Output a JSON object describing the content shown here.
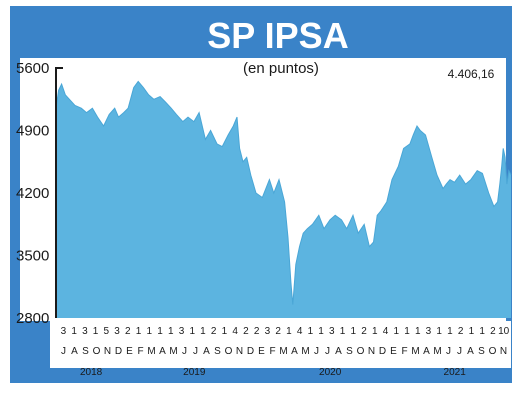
{
  "chart_data": {
    "type": "area",
    "title": "SP IPSA",
    "subtitle": "(en puntos)",
    "last_value_label": "4.406,16",
    "ylim": [
      2800,
      5600
    ],
    "yticks": [
      {
        "value": 5600,
        "label": "5600"
      },
      {
        "value": 4900,
        "label": "4900"
      },
      {
        "value": 4200,
        "label": "4200"
      },
      {
        "value": 3500,
        "label": "3500"
      },
      {
        "value": 2800,
        "label": "2800"
      }
    ],
    "x_start": "2018-06-25",
    "x_end": "2021-10-31",
    "day_labels": [
      "3",
      "1",
      "3",
      "1",
      "5",
      "3",
      "2",
      "1",
      "1",
      "1",
      "1",
      "3",
      "1",
      "1",
      "2",
      "1",
      "4",
      "2",
      "2",
      "3",
      "2",
      "1",
      "4",
      "1",
      "1",
      "3",
      "1",
      "1",
      "2",
      "1",
      "4",
      "1",
      "1",
      "1",
      "3",
      "1",
      "1",
      "2",
      "1",
      "1",
      "2",
      "10"
    ],
    "month_labels": [
      "J",
      "A",
      "S",
      "O",
      "N",
      "D",
      "E",
      "F",
      "M",
      "A",
      "M",
      "J",
      "J",
      "A",
      "S",
      "O",
      "N",
      "D",
      "E",
      "F",
      "M",
      "A",
      "M",
      "J",
      "J",
      "A",
      "S",
      "O",
      "N",
      "D",
      "E",
      "F",
      "M",
      "A",
      "M",
      "J",
      "J",
      "A",
      "S",
      "O",
      "N"
    ],
    "years": [
      {
        "label": "2018",
        "from": "2018-06-25",
        "to": "2018-12-31"
      },
      {
        "label": "2019",
        "from": "2019-01-01",
        "to": "2019-12-31"
      },
      {
        "label": "2020",
        "from": "2020-01-01",
        "to": "2020-12-31"
      },
      {
        "label": "2021",
        "from": "2021-01-01",
        "to": "2021-10-31"
      }
    ],
    "series": [
      {
        "x": [
          "2018-06-25",
          "2018-07-02",
          "2018-07-10",
          "2018-07-20",
          "2018-07-31",
          "2018-08-15",
          "2018-09-01",
          "2018-09-15",
          "2018-10-01",
          "2018-10-15",
          "2018-10-31",
          "2018-11-15",
          "2018-11-30",
          "2018-12-10",
          "2018-12-24",
          "2019-01-05",
          "2019-01-20",
          "2019-02-01",
          "2019-02-15",
          "2019-03-01",
          "2019-03-15",
          "2019-04-01",
          "2019-04-15",
          "2019-05-01",
          "2019-05-15",
          "2019-06-01",
          "2019-06-15",
          "2019-07-01",
          "2019-07-15",
          "2019-08-01",
          "2019-08-15",
          "2019-09-01",
          "2019-09-15",
          "2019-10-01",
          "2019-10-15",
          "2019-10-25",
          "2019-11-01",
          "2019-11-10",
          "2019-11-20",
          "2019-12-01",
          "2019-12-15",
          "2020-01-01",
          "2020-01-20",
          "2020-02-01",
          "2020-02-15",
          "2020-03-01",
          "2020-03-10",
          "2020-03-18",
          "2020-03-23",
          "2020-03-31",
          "2020-04-10",
          "2020-04-20",
          "2020-05-01",
          "2020-05-15",
          "2020-06-01",
          "2020-06-15",
          "2020-07-01",
          "2020-07-15",
          "2020-08-01",
          "2020-08-15",
          "2020-09-01",
          "2020-09-15",
          "2020-10-01",
          "2020-10-15",
          "2020-10-26",
          "2020-11-05",
          "2020-11-15",
          "2020-12-01",
          "2020-12-15",
          "2021-01-01",
          "2021-01-15",
          "2021-02-01",
          "2021-02-10",
          "2021-02-20",
          "2021-03-01",
          "2021-03-15",
          "2021-04-01",
          "2021-04-15",
          "2021-05-01",
          "2021-05-10",
          "2021-05-20",
          "2021-06-01",
          "2021-06-15",
          "2021-07-01",
          "2021-07-15",
          "2021-08-01",
          "2021-08-15",
          "2021-09-01",
          "2021-09-15",
          "2021-09-25",
          "2021-10-01",
          "2021-10-06",
          "2021-10-10",
          "2021-10-15",
          "2021-10-20",
          "2021-10-25",
          "2021-10-31"
        ],
        "y": [
          5150,
          5350,
          5420,
          5300,
          5250,
          5180,
          5150,
          5100,
          5150,
          5050,
          4950,
          5080,
          5150,
          5050,
          5100,
          5150,
          5380,
          5450,
          5380,
          5300,
          5250,
          5280,
          5220,
          5150,
          5080,
          5000,
          5050,
          5000,
          5100,
          4800,
          4900,
          4750,
          4720,
          4850,
          4950,
          5050,
          4700,
          4550,
          4600,
          4400,
          4200,
          4150,
          4350,
          4200,
          4350,
          4100,
          3700,
          3200,
          2950,
          3400,
          3600,
          3750,
          3800,
          3850,
          3950,
          3800,
          3900,
          3950,
          3900,
          3800,
          3950,
          3750,
          3850,
          3600,
          3650,
          3950,
          4000,
          4100,
          4350,
          4500,
          4700,
          4750,
          4850,
          4950,
          4900,
          4850,
          4600,
          4400,
          4250,
          4300,
          4350,
          4320,
          4400,
          4300,
          4350,
          4450,
          4420,
          4200,
          4050,
          4100,
          4300,
          4500,
          4700,
          4600,
          4300,
          4450,
          4406.16
        ]
      }
    ]
  }
}
